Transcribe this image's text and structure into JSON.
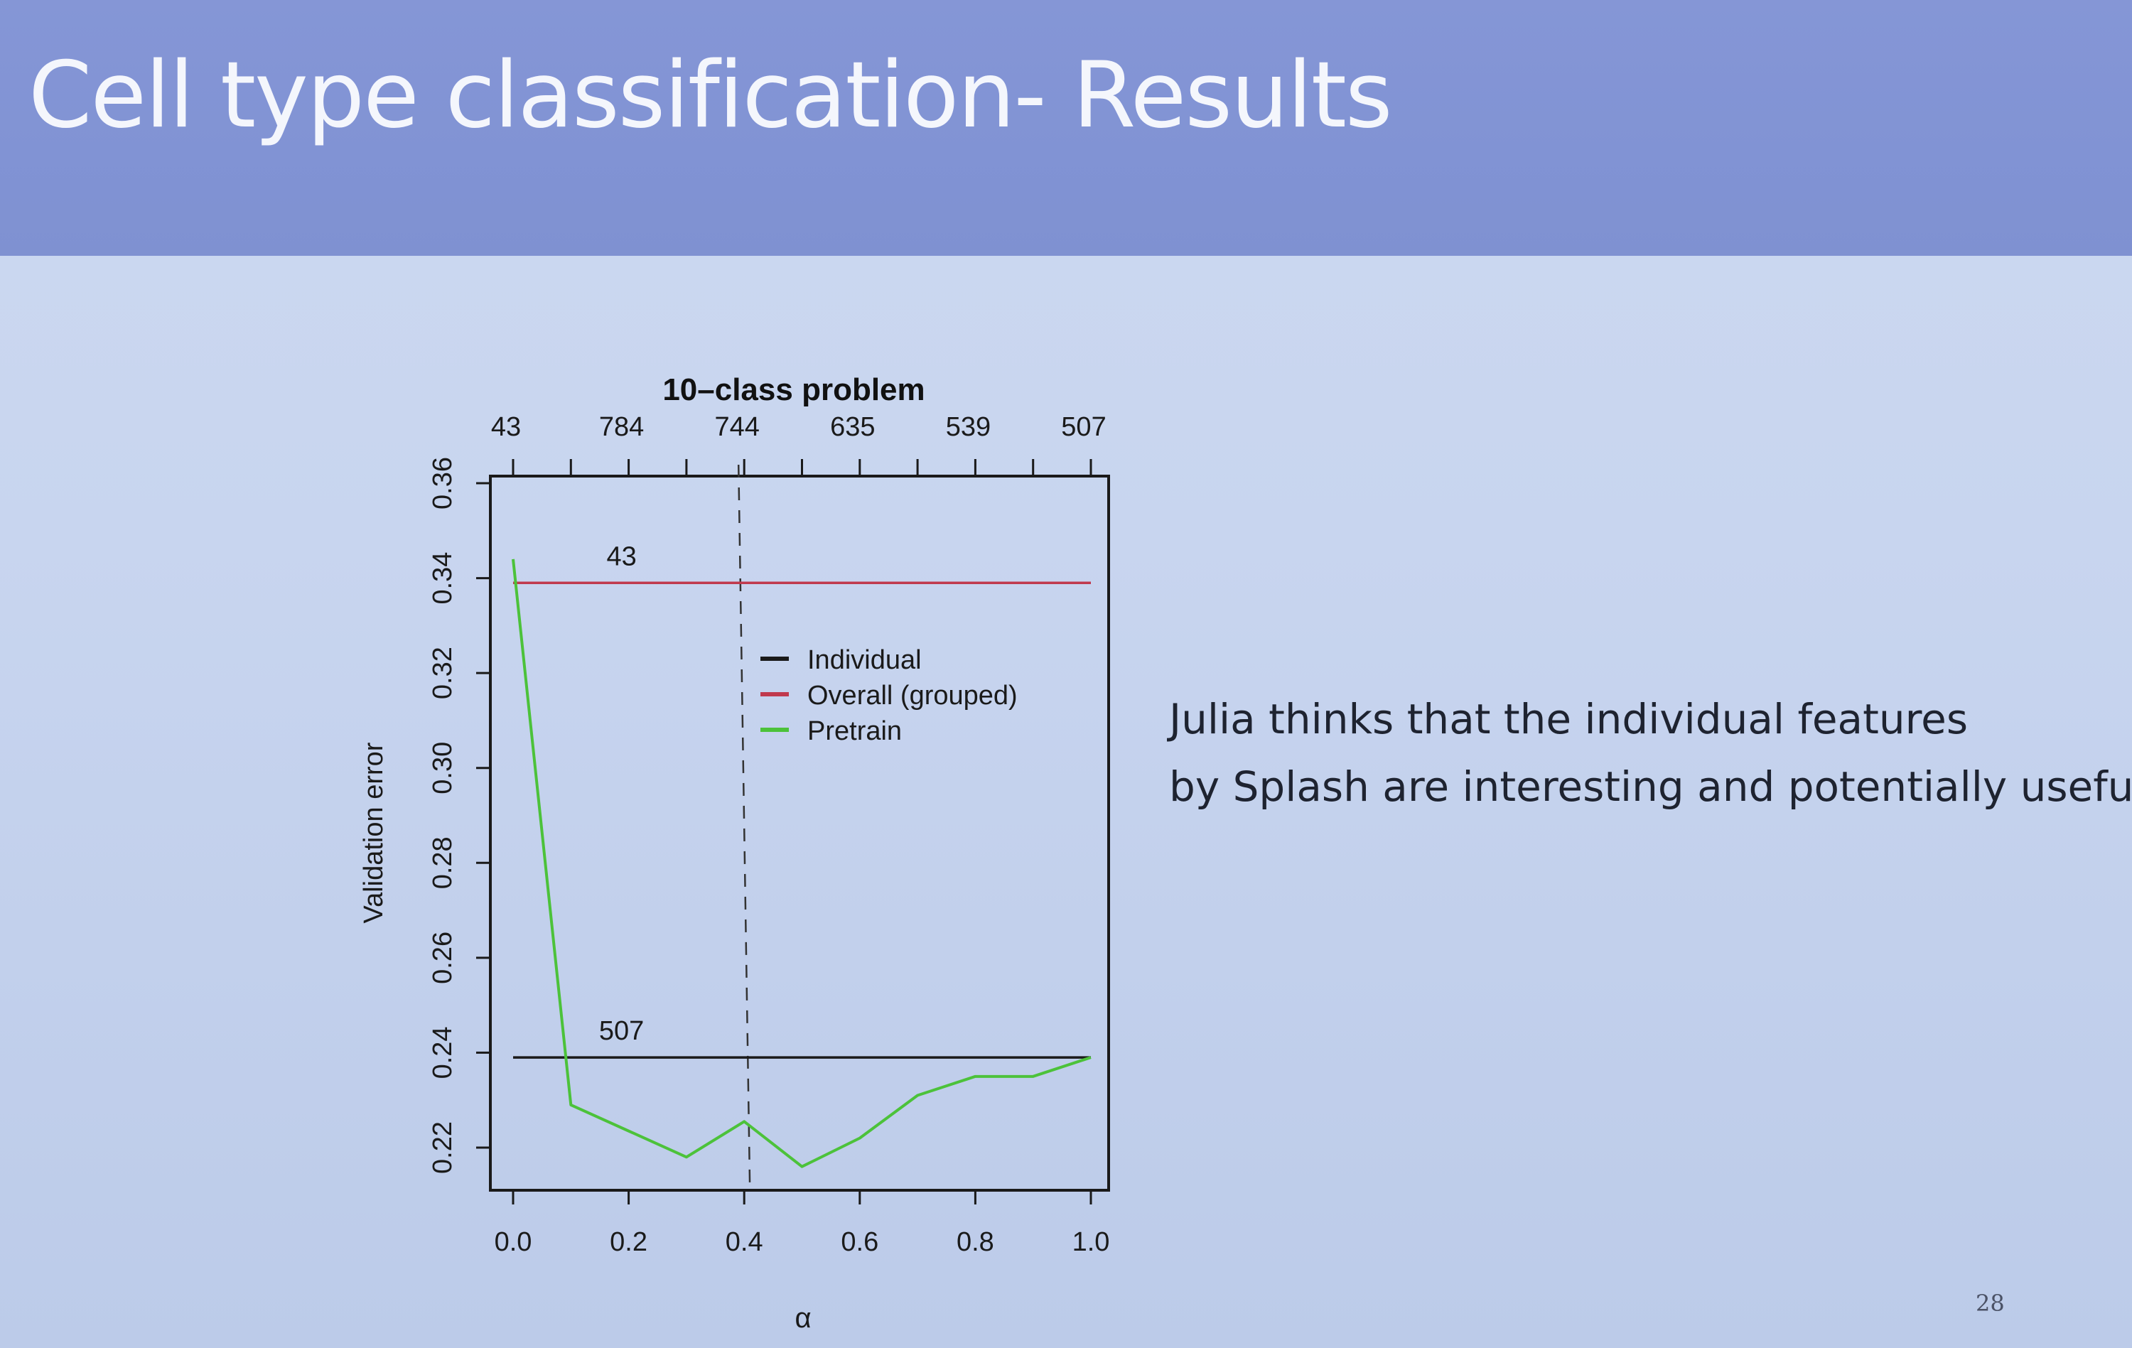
{
  "slide": {
    "title": "Cell type classification- Results",
    "body_lines": [
      "Julia thinks that the individual features",
      "by Splash are interesting and potentially useful"
    ],
    "page_number": "28"
  },
  "chart_data": {
    "type": "line",
    "title": "10–class problem",
    "xlabel": "α",
    "ylabel": "Validation error",
    "xlim": [
      0.0,
      1.0
    ],
    "ylim": [
      0.22,
      0.36
    ],
    "x_ticks": [
      "0.0",
      "0.2",
      "0.4",
      "0.6",
      "0.8",
      "1.0"
    ],
    "y_ticks": [
      "0.22",
      "0.24",
      "0.26",
      "0.28",
      "0.30",
      "0.32",
      "0.34",
      "0.36"
    ],
    "top_axis_labels": [
      "43",
      "784",
      "744",
      "635",
      "539",
      "507"
    ],
    "vline_x": 0.4,
    "legend_position": "center",
    "series": [
      {
        "name": "Individual",
        "color": "#1a1a1a",
        "x": [
          0.0,
          1.0
        ],
        "values": [
          0.239,
          0.239
        ]
      },
      {
        "name": "Overall (grouped)",
        "color": "#c0394d",
        "x": [
          0.0,
          1.0
        ],
        "values": [
          0.339,
          0.339
        ]
      },
      {
        "name": "Pretrain",
        "color": "#4cc23a",
        "x": [
          0.0,
          0.1,
          0.2,
          0.3,
          0.4,
          0.5,
          0.6,
          0.7,
          0.8,
          0.9,
          1.0
        ],
        "values": [
          0.344,
          0.229,
          0.2235,
          0.218,
          0.2255,
          0.216,
          0.222,
          0.231,
          0.235,
          0.235,
          0.239
        ]
      }
    ],
    "annotations": [
      {
        "text": "43",
        "x": 0.2,
        "y": 0.339
      },
      {
        "text": "507",
        "x": 0.2,
        "y": 0.239
      }
    ]
  }
}
